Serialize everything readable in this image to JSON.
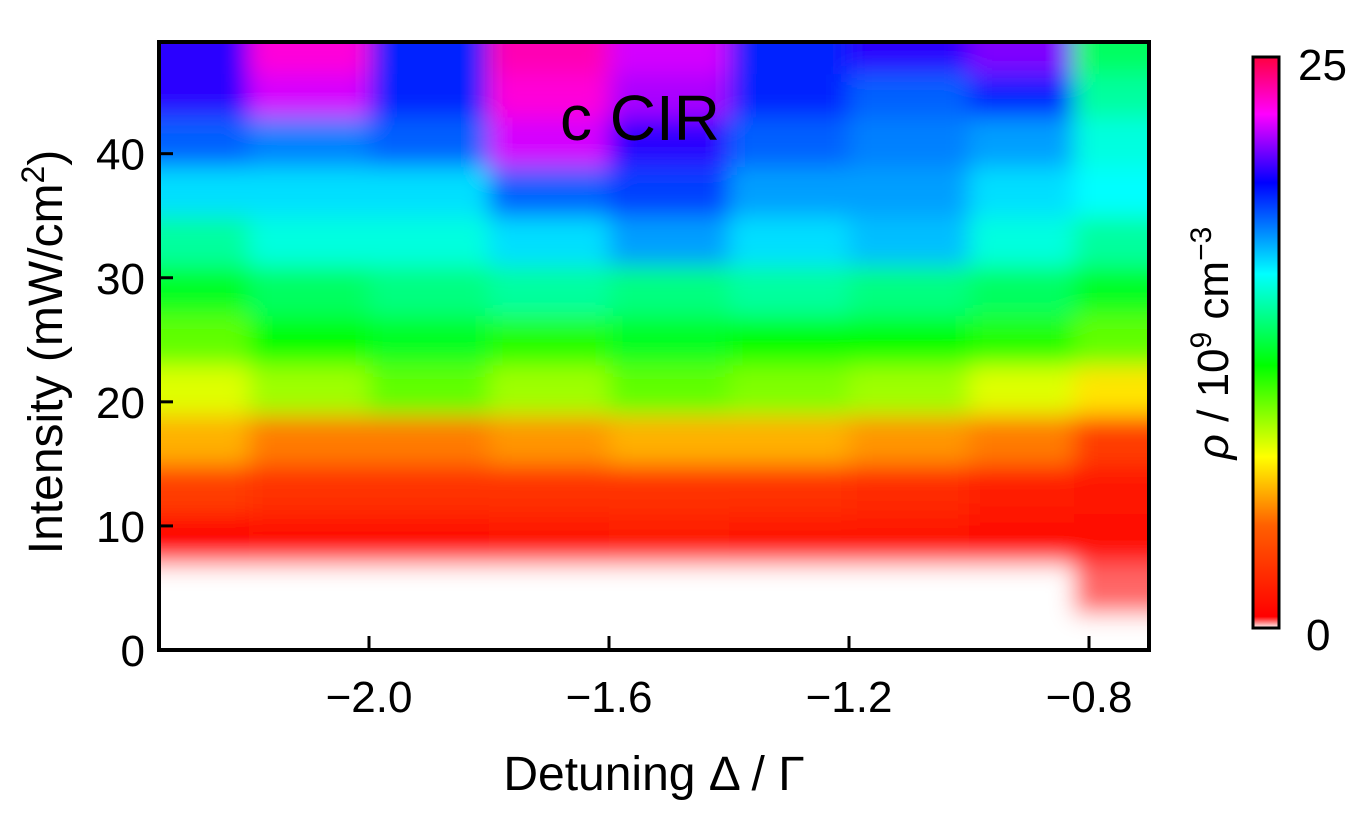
{
  "chart_data": {
    "type": "heatmap",
    "title": "c CIR",
    "xlabel": "Detuning Δ / Γ",
    "ylabel": "Intensity (mW/cm²)",
    "ylabel_parts": {
      "main": "Intensity (mW/cm",
      "sup": "2",
      "close": ")"
    },
    "x_ticks": [
      -2.0,
      -1.6,
      -1.2,
      -0.8
    ],
    "x_tick_labels": [
      "−2.0",
      "−1.6",
      "−1.2",
      "−0.8"
    ],
    "y_ticks": [
      0,
      10,
      20,
      30,
      40
    ],
    "y_tick_labels": [
      "0",
      "10",
      "20",
      "30",
      "40"
    ],
    "xlim": [
      -2.35,
      -0.7
    ],
    "ylim": [
      0,
      49
    ],
    "grid": false,
    "colorbar": {
      "label": "ρ / 10⁹ cm⁻³",
      "label_parts": {
        "rho": "ρ",
        "mid": " / 10",
        "sup1": "9",
        "unit": " cm",
        "sup2": "−3"
      },
      "min": 0,
      "max": 25,
      "min_label": "0",
      "max_label": "25",
      "colormap": "hue (red→yellow→green→cyan→blue→magenta→red)"
    },
    "x": [
      -2.3,
      -2.1,
      -1.9,
      -1.7,
      -1.5,
      -1.3,
      -1.1,
      -0.9,
      -0.75
    ],
    "y": [
      1,
      5,
      9,
      13,
      17,
      21,
      25,
      29,
      33,
      37,
      41,
      45,
      48
    ],
    "z": [
      [
        0,
        0,
        0,
        0,
        0,
        0,
        0,
        0,
        0
      ],
      [
        0,
        0,
        0,
        0,
        0,
        0,
        0,
        0,
        0.3
      ],
      [
        0.6,
        0.8,
        1.2,
        1.5,
        1.6,
        1.5,
        1.3,
        1.0,
        0.8
      ],
      [
        3,
        2.5,
        2.5,
        2.5,
        2.5,
        2.5,
        2.3,
        1.8,
        1.5
      ],
      [
        6,
        5,
        5,
        5.5,
        6,
        6,
        5.5,
        5,
        3
      ],
      [
        8,
        9,
        10,
        9,
        10,
        9.5,
        9,
        8,
        7
      ],
      [
        10,
        11.5,
        12,
        11,
        12,
        11.5,
        11.5,
        11,
        10
      ],
      [
        12,
        13,
        13.5,
        14,
        13.5,
        14,
        13.5,
        13,
        12
      ],
      [
        14,
        15,
        15,
        16,
        17,
        16,
        16.5,
        15,
        14
      ],
      [
        16,
        16,
        16,
        18,
        18.5,
        17,
        17,
        16,
        15.5
      ],
      [
        18,
        17.5,
        18,
        22,
        20,
        18,
        17.5,
        17,
        15
      ],
      [
        20,
        22,
        19,
        23,
        21.5,
        19,
        18,
        19,
        14
      ],
      [
        20,
        23,
        19,
        23.5,
        22,
        19,
        20,
        21,
        13
      ]
    ]
  }
}
